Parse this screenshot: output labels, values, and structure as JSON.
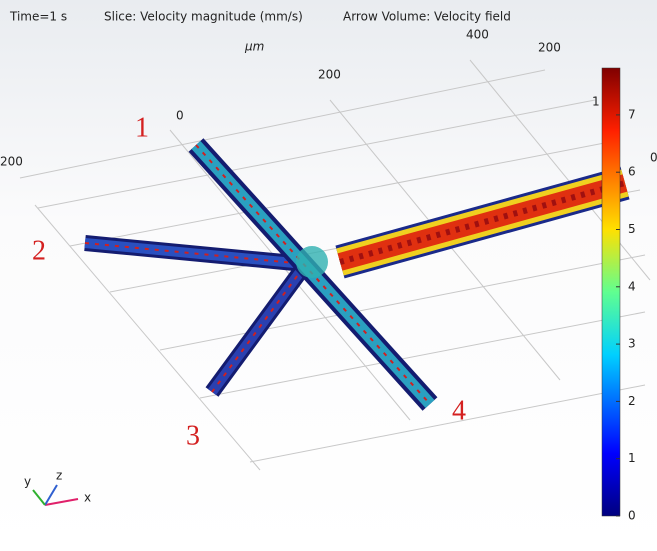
{
  "header": {
    "time": "Time=1 s",
    "slice": "Slice: Velocity magnitude (mm/s)",
    "arrow": "Arrow Volume: Velocity field"
  },
  "axes": {
    "unit": "μm",
    "x_ticks": [
      "0",
      "200",
      "400"
    ],
    "y_ticks": [
      "200",
      "200",
      "1",
      "0"
    ]
  },
  "channels": {
    "labels": [
      "1",
      "2",
      "3",
      "4"
    ]
  },
  "colorbar": {
    "ticks": [
      "0",
      "1",
      "2",
      "3",
      "4",
      "5",
      "6",
      "7"
    ]
  },
  "triad": {
    "x": "x",
    "y": "y",
    "z": "z"
  }
}
